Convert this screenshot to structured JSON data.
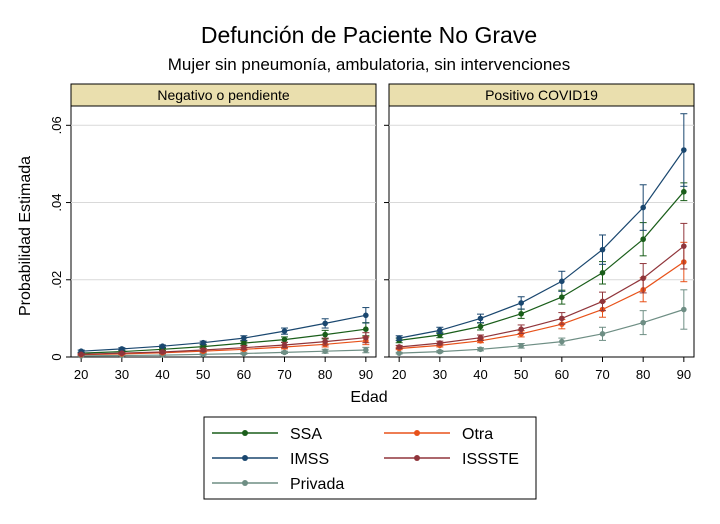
{
  "chart_data": {
    "type": "line",
    "title": "Defunción de Paciente No Grave",
    "subtitle": "Mujer sin pneumonía, ambulatoria, sin intervenciones",
    "xlabel": "Edad",
    "ylabel": "Probabilidad Estimada",
    "x": [
      20,
      30,
      40,
      50,
      60,
      70,
      80,
      90
    ],
    "x_ticks": [
      "20",
      "30",
      "40",
      "50",
      "60",
      "70",
      "80",
      "90"
    ],
    "y_ticks": [
      "0",
      ".02",
      ".04",
      ".06"
    ],
    "ylim": [
      0,
      0.065
    ],
    "grid": true,
    "legend_position": "bottom",
    "series_colors": {
      "SSA": "#1a5e1a",
      "IMSS": "#1a476f",
      "Privada": "#6e8e84",
      "Otra": "#e8521a",
      "ISSSTE": "#90353b"
    },
    "panels": [
      {
        "title": "Negativo o pendiente",
        "series": [
          {
            "name": "SSA",
            "values": [
              0.001,
              0.0014,
              0.002,
              0.0027,
              0.0036,
              0.0045,
              0.0058,
              0.0072
            ],
            "ci_low": [
              0.0008,
              0.0011,
              0.0017,
              0.0023,
              0.0031,
              0.0038,
              0.0047,
              0.0055
            ],
            "ci_high": [
              0.0012,
              0.0017,
              0.0023,
              0.0031,
              0.0041,
              0.0052,
              0.0069,
              0.0089
            ]
          },
          {
            "name": "IMSS",
            "values": [
              0.0015,
              0.0021,
              0.0028,
              0.0037,
              0.0049,
              0.0067,
              0.0087,
              0.0108
            ],
            "ci_low": [
              0.0012,
              0.0018,
              0.0025,
              0.0033,
              0.0043,
              0.0059,
              0.0075,
              0.0088
            ],
            "ci_high": [
              0.0018,
              0.0024,
              0.0031,
              0.0041,
              0.0055,
              0.0075,
              0.0099,
              0.0128
            ]
          },
          {
            "name": "Privada",
            "values": [
              0.0003,
              0.0004,
              0.0005,
              0.0007,
              0.0009,
              0.0012,
              0.0015,
              0.0018
            ],
            "ci_low": [
              0.0002,
              0.0003,
              0.0004,
              0.0005,
              0.0007,
              0.0009,
              0.001,
              0.0011
            ],
            "ci_high": [
              0.0004,
              0.0005,
              0.0006,
              0.0009,
              0.0011,
              0.0015,
              0.002,
              0.0025
            ]
          },
          {
            "name": "Otra",
            "values": [
              0.0006,
              0.0008,
              0.0011,
              0.0015,
              0.002,
              0.0026,
              0.0033,
              0.0042
            ],
            "ci_low": [
              0.0005,
              0.0006,
              0.0009,
              0.0012,
              0.0016,
              0.0021,
              0.0026,
              0.0032
            ],
            "ci_high": [
              0.0007,
              0.001,
              0.0013,
              0.0018,
              0.0024,
              0.0031,
              0.004,
              0.0052
            ]
          },
          {
            "name": "ISSSTE",
            "values": [
              0.0007,
              0.001,
              0.0013,
              0.0018,
              0.0024,
              0.0031,
              0.004,
              0.005
            ],
            "ci_low": [
              0.0005,
              0.0008,
              0.001,
              0.0014,
              0.0019,
              0.0024,
              0.0031,
              0.0037
            ],
            "ci_high": [
              0.0009,
              0.0012,
              0.0016,
              0.0022,
              0.0029,
              0.0038,
              0.0049,
              0.0063
            ]
          }
        ]
      },
      {
        "title": "Positivo COVID19",
        "series": [
          {
            "name": "SSA",
            "values": [
              0.0043,
              0.0057,
              0.0079,
              0.0112,
              0.0155,
              0.0218,
              0.0305,
              0.0428
            ],
            "ci_low": [
              0.0037,
              0.005,
              0.007,
              0.01,
              0.0137,
              0.0189,
              0.0262,
              0.0405
            ],
            "ci_high": [
              0.0049,
              0.0064,
              0.0088,
              0.0124,
              0.0173,
              0.0247,
              0.0348,
              0.0451
            ]
          },
          {
            "name": "IMSS",
            "values": [
              0.0049,
              0.0069,
              0.01,
              0.014,
              0.0196,
              0.0278,
              0.0387,
              0.0536
            ],
            "ci_low": [
              0.0043,
              0.0061,
              0.0089,
              0.0124,
              0.017,
              0.024,
              0.0328,
              0.0442
            ],
            "ci_high": [
              0.0055,
              0.0077,
              0.0111,
              0.0156,
              0.0222,
              0.0316,
              0.0446,
              0.063
            ]
          },
          {
            "name": "Privada",
            "values": [
              0.001,
              0.0014,
              0.002,
              0.0029,
              0.004,
              0.006,
              0.0089,
              0.0123
            ],
            "ci_low": [
              0.0008,
              0.0011,
              0.0016,
              0.0023,
              0.0031,
              0.0043,
              0.0058,
              0.0072
            ],
            "ci_high": [
              0.0012,
              0.0017,
              0.0024,
              0.0035,
              0.0049,
              0.0077,
              0.012,
              0.0174
            ]
          },
          {
            "name": "Otra",
            "values": [
              0.0022,
              0.003,
              0.0042,
              0.006,
              0.0085,
              0.0123,
              0.0174,
              0.0246
            ],
            "ci_low": [
              0.0019,
              0.0026,
              0.0037,
              0.0052,
              0.0073,
              0.0103,
              0.0143,
              0.0195
            ],
            "ci_high": [
              0.0025,
              0.0034,
              0.0047,
              0.0068,
              0.0097,
              0.0143,
              0.0205,
              0.0297
            ]
          },
          {
            "name": "ISSSTE",
            "values": [
              0.0026,
              0.0036,
              0.005,
              0.0072,
              0.01,
              0.0144,
              0.0204,
              0.0287
            ],
            "ci_low": [
              0.0022,
              0.0031,
              0.0043,
              0.0061,
              0.0085,
              0.012,
              0.0166,
              0.0228
            ],
            "ci_high": [
              0.003,
              0.0041,
              0.0057,
              0.0083,
              0.0115,
              0.0168,
              0.0242,
              0.0346
            ]
          }
        ]
      }
    ],
    "legend": [
      "SSA",
      "Otra",
      "IMSS",
      "ISSSTE",
      "Privada"
    ]
  }
}
